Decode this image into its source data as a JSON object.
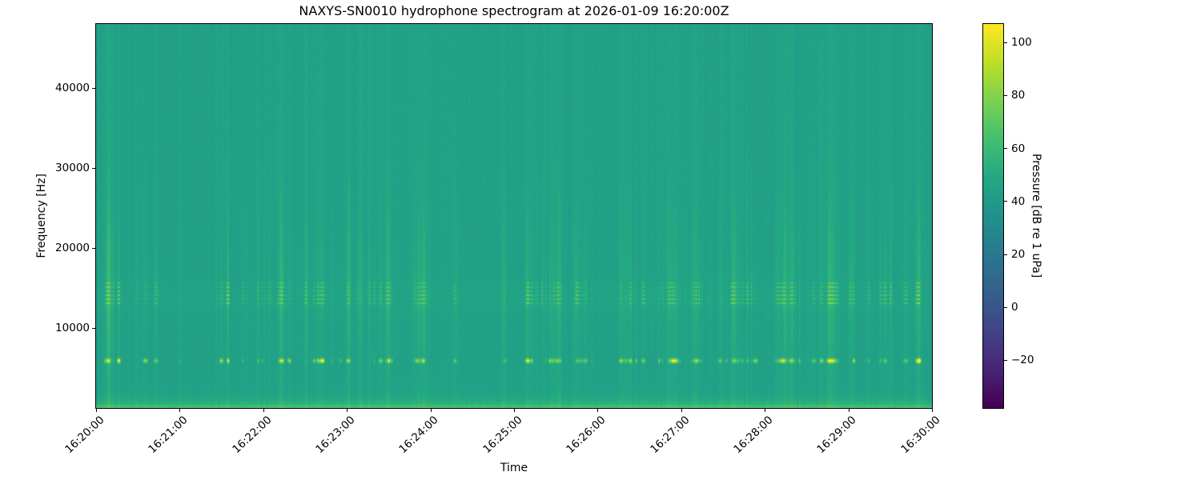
{
  "figure": {
    "kind": "matplotlib-spectrogram"
  },
  "chart_data": {
    "type": "heatmap",
    "subtype": "spectrogram",
    "title": "NAXYS-SN0010 hydrophone spectrogram at 2026-01-09 16:20:00Z",
    "xlabel": "Time",
    "ylabel": "Frequency [Hz]",
    "x_ticks": [
      "16:20:00",
      "16:21:00",
      "16:22:00",
      "16:23:00",
      "16:24:00",
      "16:25:00",
      "16:26:00",
      "16:27:00",
      "16:28:00",
      "16:29:00",
      "16:30:00"
    ],
    "x_range_seconds": 600,
    "ylim_hz": [
      0,
      48000
    ],
    "y_ticks_hz": [
      10000,
      20000,
      30000,
      40000
    ],
    "colormap": "viridis",
    "colorbar": {
      "label": "Pressure [dB re 1 uPa]",
      "ticks": [
        100,
        80,
        60,
        40,
        20,
        0,
        -20
      ],
      "vmin": -38,
      "vmax": 107
    },
    "content": {
      "background_db": 44.5,
      "low_freq_boost_db": 22,
      "low_freq_scale_hz": 700,
      "band_hump": {
        "center_hz": 14200,
        "sigma_hz": 1800,
        "db": 1.5
      },
      "tonal_lines": [
        {
          "hz": 12600,
          "db": 2.5
        },
        {
          "hz": 13600,
          "db": 2.0
        }
      ],
      "click_band_6k": {
        "center_hz": 5900,
        "sigma_hz": 260,
        "max_db": 45
      },
      "click_band_14k": {
        "lines_hz": [
          13100,
          13600,
          14100,
          14600,
          15100,
          15600
        ],
        "line_weights": [
          1.0,
          0.75,
          0.9,
          0.65,
          0.8,
          0.55
        ],
        "sigma_hz": 110,
        "max_db": 22
      },
      "broadband_env": {
        "center_hz": 15000,
        "sigma_hz": 11000,
        "floor": 0.3
      },
      "streak_groups": 60,
      "lone_streaks": 55,
      "noise_db": 1.3,
      "column_noise_db": 1.1,
      "seed": 20260109
    }
  }
}
